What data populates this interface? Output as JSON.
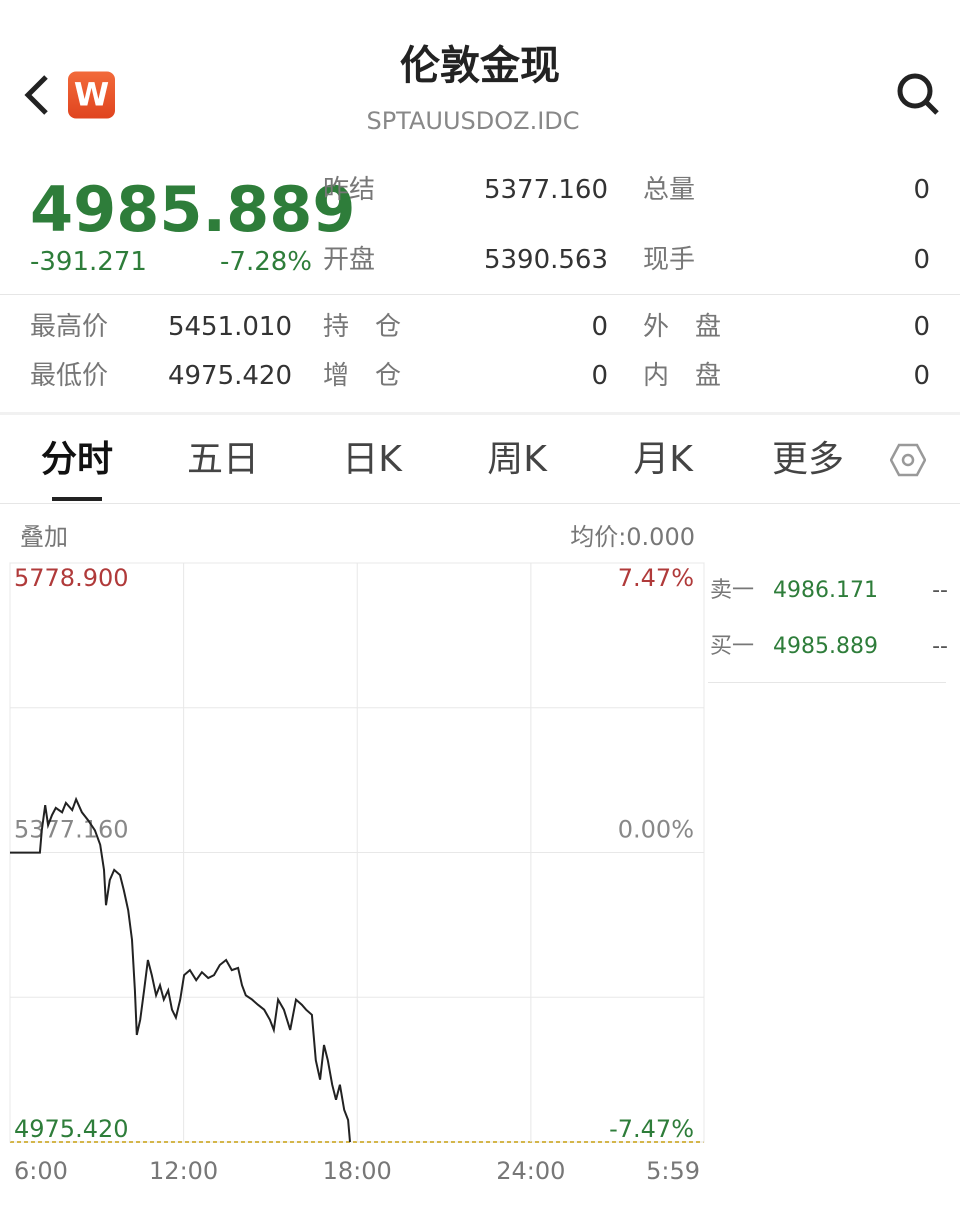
{
  "header": {
    "title": "伦敦金现",
    "subtitle": "SPTAUUSDOZ.IDC",
    "logo": "W"
  },
  "quote": {
    "price": "4985.889",
    "change": "-391.271",
    "change_pct": "-7.28%",
    "stats": [
      [
        "昨结",
        "5377.160",
        "总量",
        "0"
      ],
      [
        "开盘",
        "5390.563",
        "现手",
        "0"
      ]
    ],
    "details": [
      [
        "最高价",
        "5451.010",
        "持　仓",
        "0",
        "外　盘",
        "0"
      ],
      [
        "最低价",
        "4975.420",
        "增　仓",
        "0",
        "内　盘",
        "0"
      ]
    ]
  },
  "tabs": [
    "分时",
    "五日",
    "日K",
    "周K",
    "月K",
    "更多"
  ],
  "chart_header": {
    "overlay": "叠加",
    "average": "均价:0.000"
  },
  "order_book": [
    {
      "label": "卖一",
      "price": "4986.171",
      "volume": "--"
    },
    {
      "label": "买一",
      "price": "4985.889",
      "volume": "--"
    }
  ],
  "chart_data": {
    "type": "line",
    "color": "#222222",
    "grid": true,
    "x": [
      0,
      62,
      66,
      73,
      79,
      87,
      95,
      108,
      116,
      129,
      137,
      149,
      162,
      176,
      187,
      195,
      199,
      207,
      216,
      228,
      236,
      245,
      253,
      259,
      263,
      270,
      278,
      286,
      294,
      303,
      311,
      319,
      328,
      336,
      344,
      353,
      361,
      373,
      386,
      398,
      411,
      423,
      435,
      448,
      460,
      473,
      481,
      489,
      502,
      514,
      527,
      539,
      547,
      556,
      568,
      581,
      593,
      605,
      614,
      626,
      634,
      643,
      651,
      659,
      668,
      676,
      684,
      693,
      701,
      705
    ],
    "values": [
      5377,
      5377,
      5408,
      5443,
      5415,
      5429,
      5439,
      5433,
      5446,
      5436,
      5451,
      5433,
      5422,
      5408,
      5388,
      5353,
      5304,
      5339,
      5353,
      5346,
      5325,
      5297,
      5256,
      5186,
      5124,
      5145,
      5186,
      5228,
      5207,
      5179,
      5193,
      5173,
      5186,
      5159,
      5148,
      5173,
      5207,
      5214,
      5200,
      5211,
      5203,
      5207,
      5221,
      5228,
      5214,
      5217,
      5193,
      5179,
      5173,
      5166,
      5159,
      5145,
      5131,
      5173,
      5159,
      5131,
      5173,
      5166,
      5159,
      5152,
      5089,
      5062,
      5110,
      5089,
      5055,
      5034,
      5055,
      5020,
      5006,
      4975.42
    ],
    "xlim": [
      0,
      1439
    ],
    "xticks": [
      {
        "value": 0,
        "label": "6:00"
      },
      {
        "value": 360,
        "label": "12:00"
      },
      {
        "value": 720,
        "label": "18:00"
      },
      {
        "value": 1080,
        "label": "24:00"
      },
      {
        "value": 1439,
        "label": "5:59"
      }
    ],
    "ylim": [
      4975.42,
      5778.9
    ],
    "yticks": [
      {
        "value": 5778.9,
        "label": "5778.900"
      },
      {
        "value": 5377.16,
        "label": "5377.160"
      },
      {
        "value": 4975.42,
        "label": "4975.420"
      }
    ],
    "y2lim": [
      -7.47,
      7.47
    ],
    "y2ticks": [
      {
        "value": 7.47,
        "label": "7.47%"
      },
      {
        "value": 0,
        "label": "0.00%"
      },
      {
        "value": -7.47,
        "label": "-7.47%"
      }
    ]
  }
}
